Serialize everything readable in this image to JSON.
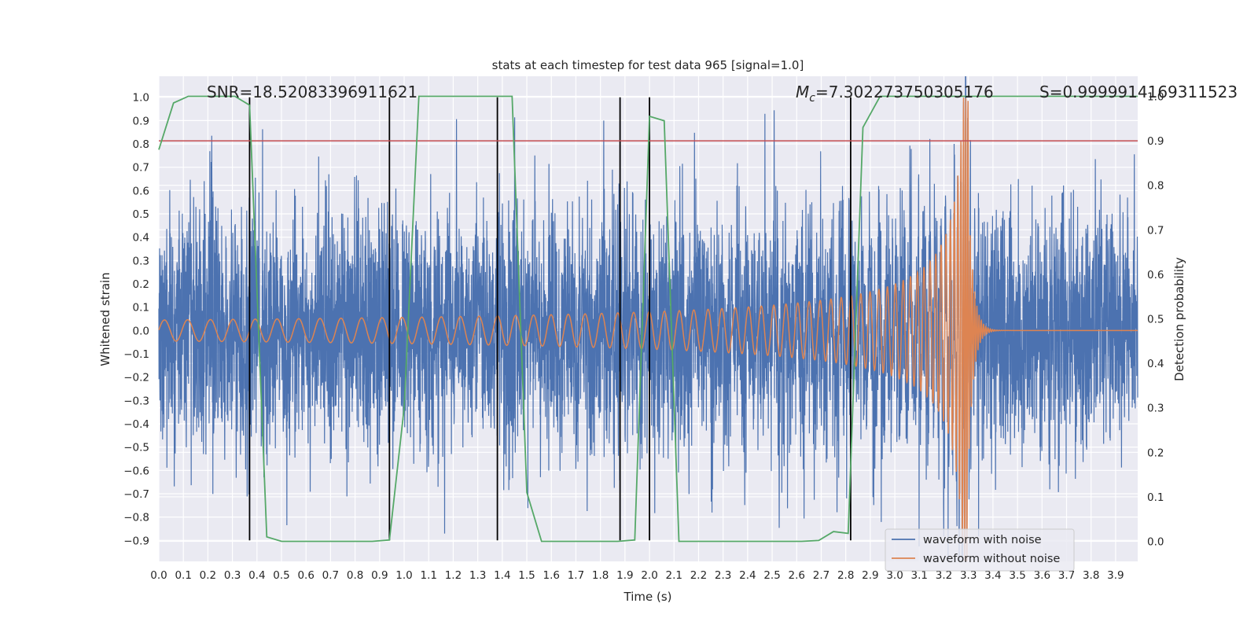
{
  "chart_data": {
    "type": "line",
    "title": "stats at each timestep for test data 965 [signal=1.0]",
    "xlabel": "Time (s)",
    "ylabel_left": "Whitened strain",
    "ylabel_right": "Detection probability",
    "xlim": [
      0.0,
      3.99
    ],
    "ylim_left": [
      -0.99,
      1.09
    ],
    "ylim_right": [
      -0.045,
      1.045
    ],
    "x_ticks": [
      "0.0",
      "0.1",
      "0.2",
      "0.3",
      "0.4",
      "0.5",
      "0.6",
      "0.7",
      "0.8",
      "0.9",
      "1.0",
      "1.1",
      "1.2",
      "1.3",
      "1.4",
      "1.5",
      "1.6",
      "1.7",
      "1.8",
      "1.9",
      "2.0",
      "2.1",
      "2.2",
      "2.3",
      "2.4",
      "2.5",
      "2.6",
      "2.7",
      "2.8",
      "2.9",
      "3.0",
      "3.1",
      "3.2",
      "3.3",
      "3.4",
      "3.5",
      "3.6",
      "3.7",
      "3.8",
      "3.9"
    ],
    "y_ticks_left": [
      "1.0",
      "0.9",
      "0.8",
      "0.7",
      "0.6",
      "0.5",
      "0.4",
      "0.3",
      "0.2",
      "0.1",
      "0.0",
      "−0.1",
      "−0.2",
      "−0.3",
      "−0.4",
      "−0.5",
      "−0.6",
      "−0.7",
      "−0.8",
      "−0.9"
    ],
    "y_ticks_right": [
      "1.0",
      "0.9",
      "0.8",
      "0.7",
      "0.6",
      "0.5",
      "0.4",
      "0.3",
      "0.2",
      "0.1",
      "0.0"
    ],
    "threshold_right": 0.9,
    "vertical_markers": [
      0.37,
      0.94,
      1.38,
      1.88,
      2.0,
      2.82
    ],
    "detection_probability": {
      "x": [
        0.0,
        0.06,
        0.12,
        0.19,
        0.25,
        0.31,
        0.37,
        0.44,
        0.5,
        0.56,
        0.62,
        0.69,
        0.75,
        0.81,
        0.87,
        0.94,
        1.0,
        1.06,
        1.12,
        1.19,
        1.25,
        1.31,
        1.37,
        1.44,
        1.5,
        1.56,
        1.62,
        1.69,
        1.75,
        1.81,
        1.87,
        1.94,
        2.0,
        2.06,
        2.12,
        2.19,
        2.25,
        2.31,
        2.37,
        2.44,
        2.5,
        2.56,
        2.62,
        2.69,
        2.75,
        2.81,
        2.87,
        2.94,
        3.0,
        3.06,
        3.12,
        3.19,
        3.25,
        3.31,
        3.37,
        3.44,
        3.5,
        3.56,
        3.62,
        3.69,
        3.75,
        3.81,
        3.87,
        3.94,
        3.99
      ],
      "y": [
        0.88,
        0.985,
        1.0,
        1.0,
        1.0,
        1.0,
        0.98,
        0.01,
        0.0,
        0.0,
        0.0,
        0.0,
        0.0,
        0.0,
        0.0,
        0.003,
        0.3,
        1.0,
        1.0,
        1.0,
        1.0,
        1.0,
        1.0,
        1.0,
        0.11,
        0.0,
        0.0,
        0.0,
        0.0,
        0.0,
        0.0,
        0.003,
        0.955,
        0.945,
        0.0,
        0.0,
        0.0,
        0.0,
        0.0,
        0.0,
        0.0,
        0.0,
        0.0,
        0.002,
        0.022,
        0.018,
        0.93,
        1.0,
        1.0,
        1.0,
        1.0,
        1.0,
        1.0,
        1.0,
        1.0,
        1.0,
        1.0,
        1.0,
        1.0,
        1.0,
        1.0,
        1.0,
        1.0,
        1.0,
        1.0
      ]
    },
    "waveform_without_noise": {
      "merger_time": 3.3,
      "amplitude_start": 0.045,
      "amplitude_peak": 1.0,
      "frequency_start": 10.5,
      "frequency_at_merger": 110,
      "ringdown_duration": 0.02
    },
    "waveform_with_noise": {
      "noise_sigma": 0.26,
      "typical_range": [
        -0.75,
        0.75
      ]
    },
    "annotations": {
      "snr": "SNR=18.52083396911621",
      "mc_symbol": "M",
      "mc_subscript": "c",
      "mc_value": "=7.302273750305176",
      "s": "S=0.9999914169311523"
    },
    "legend": [
      {
        "label": "waveform with noise",
        "color": "#4c72b0"
      },
      {
        "label": "waveform without noise",
        "color": "#dd8452"
      }
    ],
    "legend_position": "lower-right",
    "colors": {
      "noisy": "#4c72b0",
      "clean": "#dd8452",
      "prob": "#55a868",
      "threshold": "#c44e52",
      "markers": "#000000",
      "plot_bg": "#eaeaf2",
      "grid": "#ffffff",
      "text": "#262626"
    }
  }
}
